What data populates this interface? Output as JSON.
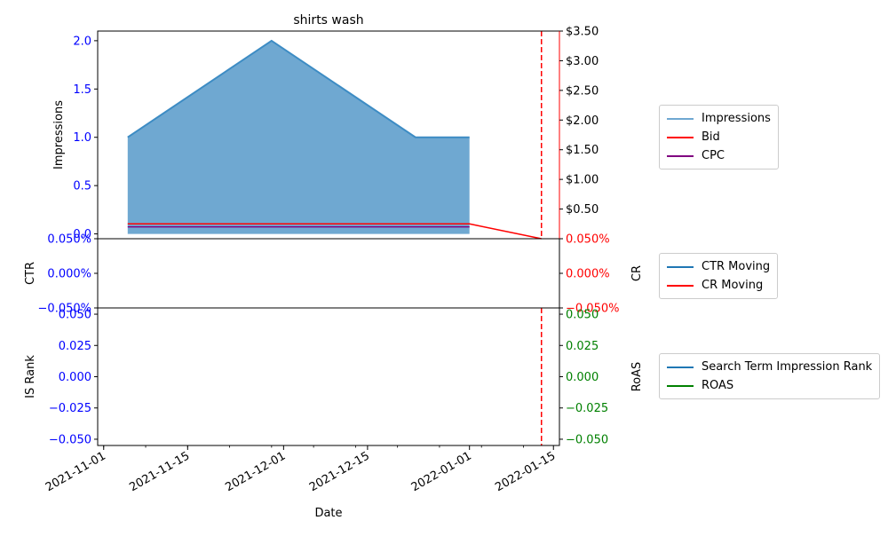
{
  "title": "shirts wash",
  "colors": {
    "impressions_fill": "#6fa8d1",
    "impressions_line": "#3d8cc4",
    "bid": "#ff0000",
    "cpc": "#800080",
    "ctr": "#1f77b4",
    "cr": "#ff0000",
    "rank": "#1f77b4",
    "roas": "#008000",
    "axis_blue": "#0000ff",
    "axis_red": "#ff0000",
    "axis_green": "#008000",
    "vline": "#ff0000"
  },
  "xaxis": {
    "label": "Date",
    "ticks": [
      "2021-11-01",
      "2021-11-15",
      "2021-12-01",
      "2021-12-15",
      "2022-01-01",
      "2022-01-15"
    ],
    "range": [
      "2021-10-31",
      "2022-01-16"
    ]
  },
  "chart_data": [
    {
      "type": "area",
      "panel": "top",
      "title": "shirts wash",
      "ylabel_left": "Impressions",
      "ylabel_right": "",
      "ylim_left": [
        -0.05,
        2.1
      ],
      "ylim_right": [
        0,
        3.5
      ],
      "yticks_left": [
        "0.0",
        "0.5",
        "1.0",
        "1.5",
        "2.0"
      ],
      "yticks_right": [
        "$0.50",
        "$1.00",
        "$1.50",
        "$2.00",
        "$2.50",
        "$3.00",
        "$3.50"
      ],
      "series": [
        {
          "name": "Impressions",
          "axis": "left",
          "x": [
            "2021-11-05",
            "2021-11-29",
            "2021-12-23",
            "2022-01-01"
          ],
          "y": [
            1.0,
            2.0,
            1.0,
            1.0
          ]
        },
        {
          "name": "Bid",
          "axis": "right",
          "x": [
            "2021-11-05",
            "2022-01-01",
            "2022-01-13"
          ],
          "y": [
            0.25,
            0.25,
            0.0
          ]
        },
        {
          "name": "CPC",
          "axis": "right",
          "x": [
            "2021-11-05",
            "2022-01-01"
          ],
          "y": [
            0.2,
            0.2
          ]
        }
      ],
      "vline": "2022-01-13"
    },
    {
      "type": "line",
      "panel": "middle",
      "ylabel_left": "CTR",
      "ylabel_right": "CR",
      "ylim_left": [
        -0.05,
        0.05
      ],
      "ylim_right": [
        -0.05,
        0.05
      ],
      "yticks_left": [
        "−0.050%",
        "0.000%",
        "0.050%"
      ],
      "yticks_right": [
        "−0.050%",
        "0.000%",
        "0.050%"
      ],
      "series": [
        {
          "name": "CTR Moving",
          "axis": "left",
          "x": [],
          "y": []
        },
        {
          "name": "CR Moving",
          "axis": "right",
          "x": [],
          "y": []
        }
      ]
    },
    {
      "type": "line",
      "panel": "bottom",
      "ylabel_left": "IS Rank",
      "ylabel_right": "RoAS",
      "ylim_left": [
        -0.055,
        0.055
      ],
      "ylim_right": [
        -0.055,
        0.055
      ],
      "yticks_left": [
        "−0.050",
        "−0.025",
        "0.000",
        "0.025",
        "0.050"
      ],
      "yticks_right": [
        "−0.050",
        "−0.025",
        "0.000",
        "0.025",
        "0.050"
      ],
      "series": [
        {
          "name": "Search Term Impression Rank",
          "axis": "left",
          "x": [],
          "y": []
        },
        {
          "name": "ROAS",
          "axis": "right",
          "x": [],
          "y": []
        }
      ],
      "vline": "2022-01-13"
    }
  ],
  "legends": {
    "top": [
      {
        "label": "Impressions",
        "color": "#6fa8d1"
      },
      {
        "label": "Bid",
        "color": "#ff0000"
      },
      {
        "label": "CPC",
        "color": "#800080"
      }
    ],
    "middle": [
      {
        "label": "CTR Moving",
        "color": "#1f77b4"
      },
      {
        "label": "CR Moving",
        "color": "#ff0000"
      }
    ],
    "bottom": [
      {
        "label": "Search Term Impression Rank",
        "color": "#1f77b4"
      },
      {
        "label": "ROAS",
        "color": "#008000"
      }
    ]
  }
}
